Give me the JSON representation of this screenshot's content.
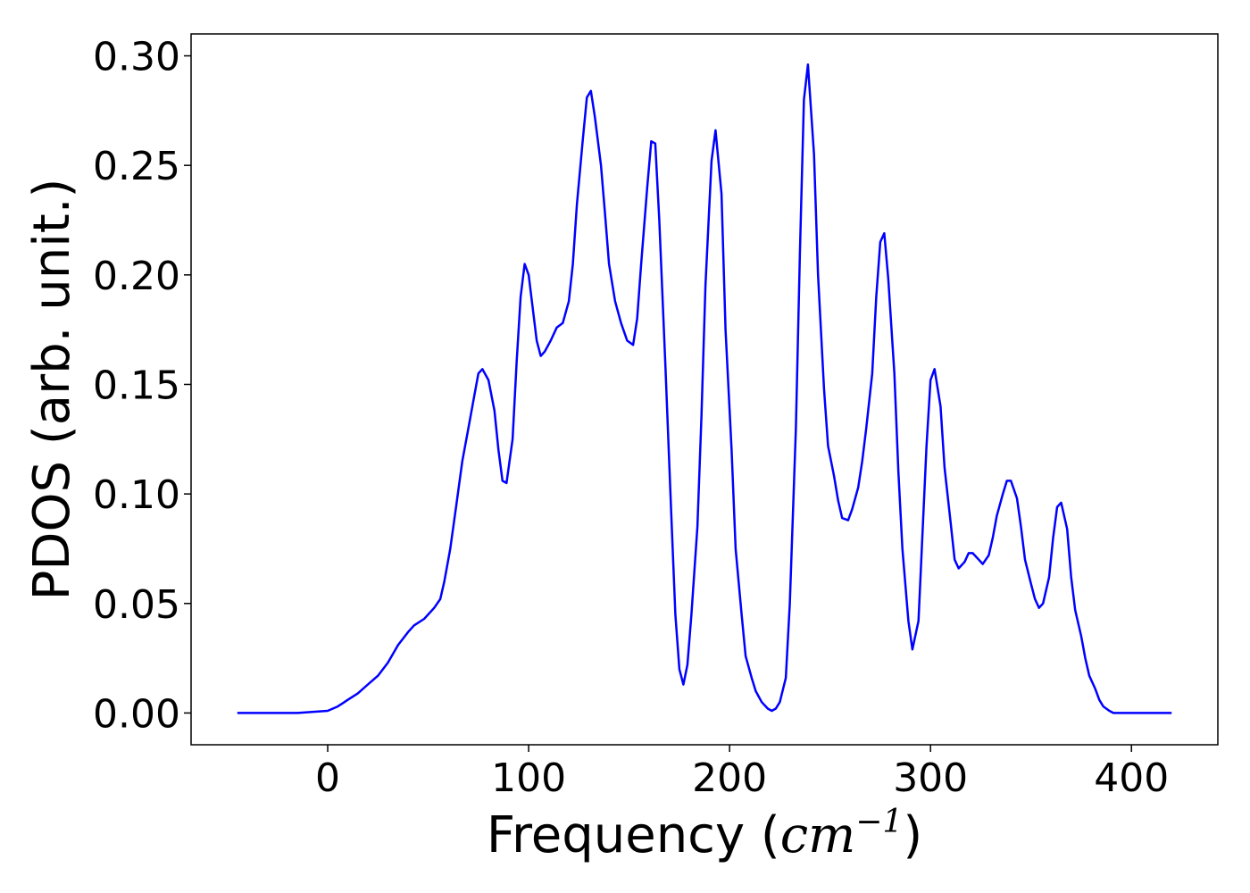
{
  "chart_data": {
    "type": "line",
    "xlabel_text": "Frequency (",
    "xlabel_math": "cm",
    "xlabel_sup": "−1",
    "xlabel_close": ")",
    "ylabel": "PDOS (arb. unit.)",
    "xlim": [
      -68,
      443
    ],
    "ylim": [
      -0.0145,
      0.31
    ],
    "xticks": [
      0,
      100,
      200,
      300,
      400
    ],
    "xtick_labels": [
      "0",
      "100",
      "200",
      "300",
      "400"
    ],
    "yticks": [
      0.0,
      0.05,
      0.1,
      0.15,
      0.2,
      0.25,
      0.3
    ],
    "ytick_labels": [
      "0.00",
      "0.05",
      "0.10",
      "0.15",
      "0.20",
      "0.25",
      "0.30"
    ],
    "grid": false,
    "legend": "none",
    "series": [
      {
        "color": "#0000ff",
        "x": [
          -45,
          -15,
          0,
          5,
          10,
          15,
          20,
          25,
          30,
          35,
          40,
          43,
          48,
          53,
          56,
          58,
          61,
          64,
          67,
          70,
          73,
          75,
          77,
          80,
          83,
          85,
          87,
          89,
          92,
          94,
          96,
          98,
          100,
          102,
          104,
          106,
          108,
          111,
          114,
          117,
          120,
          122,
          124,
          127,
          129,
          131,
          133,
          136,
          138,
          140,
          143,
          146,
          149,
          152,
          154,
          156,
          159,
          161,
          163,
          165,
          168,
          171,
          173,
          175,
          177,
          179,
          181,
          184,
          186,
          188,
          191,
          193,
          196,
          198,
          201,
          203,
          206,
          208,
          211,
          213,
          216,
          219,
          221,
          223,
          225,
          228,
          230,
          233,
          235,
          237,
          239,
          242,
          244,
          247,
          249,
          252,
          254,
          256,
          259,
          261,
          264,
          266,
          268,
          271,
          273,
          275,
          277,
          279,
          282,
          284,
          286,
          289,
          291,
          294,
          296,
          298,
          300,
          302,
          305,
          307,
          310,
          312,
          314,
          317,
          319,
          321,
          324,
          326,
          329,
          331,
          333,
          336,
          338,
          340,
          343,
          345,
          347,
          350,
          352,
          354,
          356,
          359,
          361,
          363,
          365,
          368,
          370,
          372,
          375,
          377,
          379,
          382,
          384,
          386,
          389,
          391,
          394,
          400,
          420
        ],
        "y": [
          0.0,
          0.0,
          0.001,
          0.003,
          0.006,
          0.009,
          0.013,
          0.017,
          0.023,
          0.031,
          0.037,
          0.04,
          0.043,
          0.048,
          0.052,
          0.06,
          0.075,
          0.095,
          0.115,
          0.13,
          0.145,
          0.155,
          0.157,
          0.152,
          0.138,
          0.12,
          0.106,
          0.105,
          0.125,
          0.16,
          0.19,
          0.205,
          0.2,
          0.185,
          0.17,
          0.163,
          0.165,
          0.17,
          0.176,
          0.178,
          0.188,
          0.205,
          0.232,
          0.262,
          0.281,
          0.284,
          0.272,
          0.25,
          0.228,
          0.205,
          0.188,
          0.178,
          0.17,
          0.168,
          0.18,
          0.205,
          0.24,
          0.261,
          0.26,
          0.225,
          0.16,
          0.09,
          0.045,
          0.02,
          0.013,
          0.022,
          0.045,
          0.085,
          0.135,
          0.195,
          0.252,
          0.266,
          0.237,
          0.175,
          0.12,
          0.075,
          0.045,
          0.026,
          0.016,
          0.01,
          0.005,
          0.002,
          0.001,
          0.002,
          0.005,
          0.016,
          0.05,
          0.13,
          0.21,
          0.28,
          0.296,
          0.255,
          0.2,
          0.148,
          0.122,
          0.108,
          0.097,
          0.089,
          0.088,
          0.093,
          0.103,
          0.115,
          0.13,
          0.155,
          0.19,
          0.215,
          0.219,
          0.198,
          0.155,
          0.11,
          0.075,
          0.042,
          0.029,
          0.042,
          0.082,
          0.122,
          0.152,
          0.157,
          0.14,
          0.112,
          0.087,
          0.07,
          0.066,
          0.069,
          0.073,
          0.073,
          0.07,
          0.068,
          0.072,
          0.08,
          0.09,
          0.1,
          0.106,
          0.106,
          0.098,
          0.085,
          0.07,
          0.059,
          0.052,
          0.048,
          0.05,
          0.062,
          0.08,
          0.094,
          0.096,
          0.084,
          0.062,
          0.047,
          0.035,
          0.025,
          0.017,
          0.011,
          0.006,
          0.003,
          0.001,
          0.0,
          0.0,
          0.0,
          0.0
        ]
      }
    ]
  }
}
